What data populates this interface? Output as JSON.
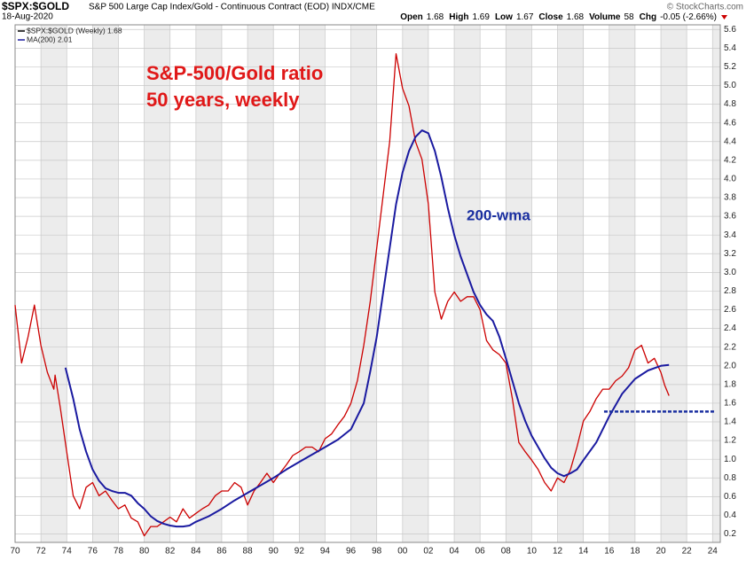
{
  "header": {
    "symbol": "$SPX:$GOLD",
    "description": "S&P 500 Large Cap Index/Gold - Continuous Contract (EOD) INDX/CME",
    "date": "18-Aug-2020",
    "credit": "© StockCharts.com",
    "quote": [
      {
        "label": "Open",
        "value": "1.68"
      },
      {
        "label": "High",
        "value": "1.69"
      },
      {
        "label": "Low",
        "value": "1.67"
      },
      {
        "label": "Close",
        "value": "1.68"
      },
      {
        "label": "Volume",
        "value": "58"
      },
      {
        "label": "Chg",
        "value": "-0.05 (-2.66%)"
      }
    ]
  },
  "chart_data": {
    "type": "line",
    "annotations": [
      "S&P-500/Gold ratio",
      "50 years, weekly",
      "200-wma"
    ],
    "xlim": [
      1970,
      2024.6
    ],
    "ylim": [
      0.11,
      5.65
    ],
    "grid": true,
    "legend": "upper left",
    "xticks": [
      {
        "value": 1970,
        "label": "70"
      },
      {
        "value": 1972,
        "label": "72"
      },
      {
        "value": 1974,
        "label": "74"
      },
      {
        "value": 1976,
        "label": "76"
      },
      {
        "value": 1978,
        "label": "78"
      },
      {
        "value": 1980,
        "label": "80"
      },
      {
        "value": 1982,
        "label": "82"
      },
      {
        "value": 1984,
        "label": "84"
      },
      {
        "value": 1986,
        "label": "86"
      },
      {
        "value": 1988,
        "label": "88"
      },
      {
        "value": 1990,
        "label": "90"
      },
      {
        "value": 1992,
        "label": "92"
      },
      {
        "value": 1994,
        "label": "94"
      },
      {
        "value": 1996,
        "label": "96"
      },
      {
        "value": 1998,
        "label": "98"
      },
      {
        "value": 2000,
        "label": "00"
      },
      {
        "value": 2002,
        "label": "02"
      },
      {
        "value": 2004,
        "label": "04"
      },
      {
        "value": 2006,
        "label": "06"
      },
      {
        "value": 2008,
        "label": "08"
      },
      {
        "value": 2010,
        "label": "10"
      },
      {
        "value": 2012,
        "label": "12"
      },
      {
        "value": 2014,
        "label": "14"
      },
      {
        "value": 2016,
        "label": "16"
      },
      {
        "value": 2018,
        "label": "18"
      },
      {
        "value": 2020,
        "label": "20"
      },
      {
        "value": 2022,
        "label": "22"
      },
      {
        "value": 2024,
        "label": "24"
      }
    ],
    "yticks": [
      0.2,
      0.4,
      0.6,
      0.8,
      {
        "value": 1,
        "label": "1.0"
      },
      1.2,
      1.4,
      1.6,
      1.8,
      {
        "value": 2,
        "label": "2.0"
      },
      2.2,
      2.4,
      2.6,
      2.8,
      {
        "value": 3,
        "label": "3.0"
      },
      3.2,
      3.4,
      3.6,
      3.8,
      {
        "value": 4,
        "label": "4.0"
      },
      4.2,
      4.4,
      4.6,
      4.8,
      {
        "value": 5,
        "label": "5.0"
      },
      5.2,
      5.4,
      5.6
    ],
    "hline": {
      "y": 1.51,
      "x": [
        2015.6,
        2024.2
      ],
      "color": "#1a2fa0",
      "style": "dashed"
    },
    "series": [
      {
        "name": "$SPX:$GOLD (Weekly) 1.68",
        "color": "#cc0000",
        "x": [
          1970,
          1970.5,
          1971,
          1971.5,
          1972,
          1972.5,
          1973,
          1973.1,
          1973.5,
          1974,
          1974.5,
          1975,
          1975.5,
          1976,
          1976.5,
          1977,
          1977.5,
          1978,
          1978.5,
          1979,
          1979.5,
          1980,
          1980.5,
          1981,
          1981.5,
          1982,
          1982.5,
          1983,
          1983.5,
          1984,
          1984.5,
          1985,
          1985.5,
          1986,
          1986.5,
          1987,
          1987.5,
          1988,
          1988.5,
          1989,
          1989.5,
          1990,
          1990.5,
          1991,
          1991.5,
          1992,
          1992.5,
          1993,
          1993.5,
          1994,
          1994.5,
          1995,
          1995.5,
          1996,
          1996.5,
          1997,
          1997.5,
          1998,
          1998.5,
          1999,
          1999.5,
          2000,
          2000.5,
          2001,
          2001.5,
          2002,
          2002.5,
          2003,
          2003.5,
          2004,
          2004.5,
          2005,
          2005.5,
          2006,
          2006.5,
          2007,
          2007.5,
          2008,
          2008.5,
          2009,
          2009.5,
          2010,
          2010.5,
          2011,
          2011.5,
          2012,
          2012.5,
          2013,
          2013.5,
          2014,
          2014.5,
          2015,
          2015.5,
          2016,
          2016.5,
          2017,
          2017.5,
          2018,
          2018.5,
          2019,
          2019.5,
          2020,
          2020.3,
          2020.63
        ],
        "values": [
          2.65,
          2.03,
          2.31,
          2.65,
          2.22,
          1.93,
          1.75,
          1.9,
          1.55,
          1.08,
          0.61,
          0.47,
          0.7,
          0.75,
          0.61,
          0.66,
          0.56,
          0.47,
          0.51,
          0.37,
          0.33,
          0.18,
          0.28,
          0.28,
          0.33,
          0.38,
          0.33,
          0.47,
          0.37,
          0.42,
          0.47,
          0.51,
          0.61,
          0.66,
          0.66,
          0.75,
          0.7,
          0.51,
          0.66,
          0.75,
          0.85,
          0.75,
          0.85,
          0.94,
          1.04,
          1.08,
          1.13,
          1.13,
          1.08,
          1.22,
          1.27,
          1.37,
          1.46,
          1.6,
          1.84,
          2.22,
          2.69,
          3.26,
          3.83,
          4.4,
          5.34,
          4.97,
          4.78,
          4.4,
          4.21,
          3.73,
          2.79,
          2.5,
          2.69,
          2.79,
          2.69,
          2.74,
          2.74,
          2.6,
          2.27,
          2.17,
          2.12,
          2.03,
          1.65,
          1.18,
          1.08,
          0.99,
          0.89,
          0.75,
          0.66,
          0.8,
          0.75,
          0.89,
          1.13,
          1.41,
          1.51,
          1.65,
          1.75,
          1.75,
          1.84,
          1.89,
          1.98,
          2.17,
          2.22,
          2.03,
          2.08,
          1.93,
          1.79,
          1.68
        ]
      },
      {
        "name": "MA(200) 2.01",
        "color": "#1a1aa0",
        "x": [
          1973.9,
          1974.5,
          1975,
          1975.5,
          1976,
          1976.5,
          1977,
          1977.5,
          1978,
          1978.5,
          1979,
          1979.5,
          1980,
          1980.5,
          1981,
          1981.5,
          1982,
          1982.5,
          1983,
          1983.5,
          1984,
          1985,
          1986,
          1987,
          1988,
          1989,
          1990,
          1991,
          1992,
          1993,
          1994,
          1995,
          1996,
          1997,
          1997.5,
          1998,
          1998.5,
          1999,
          1999.5,
          2000,
          2000.5,
          2001,
          2001.5,
          2002,
          2002.5,
          2003,
          2003.5,
          2004,
          2004.5,
          2005,
          2005.5,
          2006,
          2006.5,
          2007,
          2007.5,
          2008,
          2008.5,
          2009,
          2009.5,
          2010,
          2010.5,
          2011,
          2011.5,
          2012,
          2012.5,
          2013,
          2013.5,
          2014,
          2015,
          2016,
          2017,
          2018,
          2019,
          2020,
          2020.63
        ],
        "values": [
          1.98,
          1.65,
          1.32,
          1.08,
          0.89,
          0.77,
          0.69,
          0.66,
          0.64,
          0.64,
          0.61,
          0.53,
          0.47,
          0.39,
          0.34,
          0.31,
          0.29,
          0.28,
          0.28,
          0.29,
          0.33,
          0.39,
          0.47,
          0.56,
          0.64,
          0.72,
          0.8,
          0.89,
          0.97,
          1.05,
          1.13,
          1.21,
          1.32,
          1.6,
          1.94,
          2.31,
          2.79,
          3.26,
          3.73,
          4.07,
          4.3,
          4.45,
          4.52,
          4.49,
          4.3,
          4.02,
          3.69,
          3.4,
          3.17,
          2.98,
          2.79,
          2.65,
          2.55,
          2.48,
          2.31,
          2.08,
          1.84,
          1.6,
          1.41,
          1.25,
          1.13,
          1.01,
          0.91,
          0.85,
          0.82,
          0.85,
          0.89,
          0.99,
          1.18,
          1.46,
          1.7,
          1.86,
          1.95,
          2.0,
          2.01
        ]
      }
    ]
  }
}
